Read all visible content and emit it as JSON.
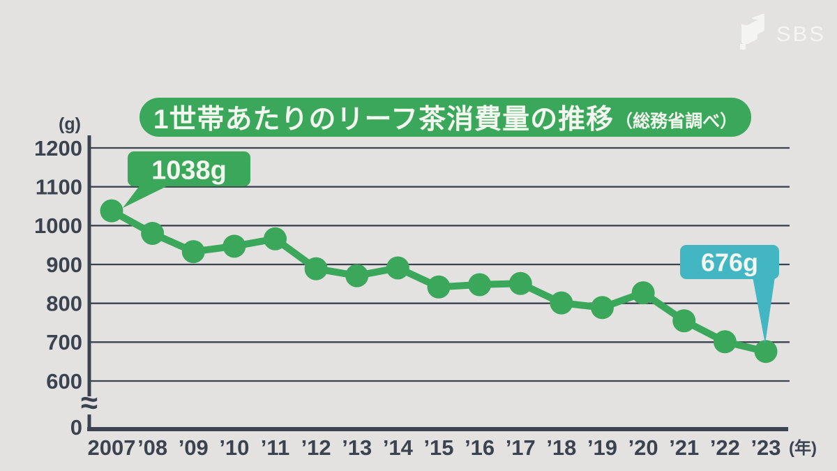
{
  "watermark": {
    "text": "SBS",
    "icon": "sbs-flag-icon"
  },
  "title": {
    "main": "1世帯あたりのリーフ茶消費量の推移",
    "source": "（総務省調べ）"
  },
  "colors": {
    "background": "#e3e2e0",
    "axis_ink": "#3b4250",
    "green": "#3aa75a",
    "teal": "#43b6c3",
    "bubble_text": "#f3f7f0"
  },
  "chart_data": {
    "type": "line",
    "title": "1世帯あたりのリーフ茶消費量の推移（総務省調べ）",
    "unit_y": "(g)",
    "unit_x": "(年)",
    "categories": [
      "2007",
      "’08",
      "’09",
      "’10",
      "’11",
      "’12",
      "’13",
      "’14",
      "’15",
      "’16",
      "’17",
      "’18",
      "’19",
      "’20",
      "’21",
      "’22",
      "’23"
    ],
    "values": [
      1038,
      980,
      933,
      947,
      966,
      889,
      871,
      891,
      842,
      848,
      851,
      801,
      789,
      827,
      755,
      701,
      676
    ],
    "y_ticks": [
      0,
      600,
      700,
      800,
      900,
      1000,
      1100,
      1200
    ],
    "ylim": [
      600,
      1200
    ],
    "axis_break": "between 0 and 600",
    "axis_break_symbol": "≈",
    "grid": true,
    "legend": "none",
    "annotations": [
      {
        "category": "2007",
        "label": "1038g",
        "color": "#3aa75a"
      },
      {
        "category": "’23",
        "label": "676g",
        "color": "#43b6c3"
      }
    ]
  }
}
